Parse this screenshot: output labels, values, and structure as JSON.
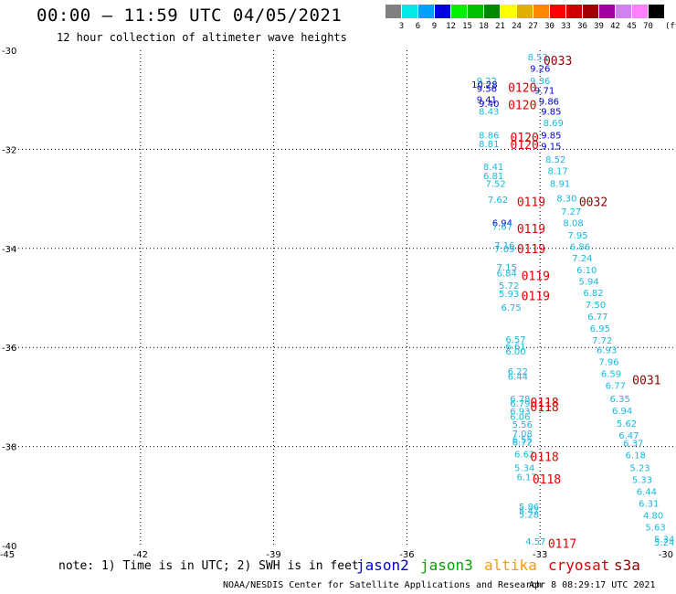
{
  "header": {
    "title": "00:00 – 11:59 UTC 04/05/2021",
    "subtitle": "12 hour collection of altimeter wave heights"
  },
  "color_scale": {
    "unit": "(ft)",
    "bins": [
      {
        "label": "3",
        "color": "#808080"
      },
      {
        "label": "6",
        "color": "#00e8e8"
      },
      {
        "label": "9",
        "color": "#00a0ff"
      },
      {
        "label": "12",
        "color": "#0000e0"
      },
      {
        "label": "15",
        "color": "#00f000"
      },
      {
        "label": "18",
        "color": "#00c000"
      },
      {
        "label": "21",
        "color": "#008800"
      },
      {
        "label": "24",
        "color": "#ffff00"
      },
      {
        "label": "27",
        "color": "#e0b000"
      },
      {
        "label": "30",
        "color": "#ff8800"
      },
      {
        "label": "33",
        "color": "#ff0000"
      },
      {
        "label": "36",
        "color": "#d00000"
      },
      {
        "label": "39",
        "color": "#a00000"
      },
      {
        "label": "42",
        "color": "#a000a0"
      },
      {
        "label": "45",
        "color": "#d080f0"
      },
      {
        "label": "70",
        "color": "#ff80ff"
      },
      {
        "label": "",
        "color": "#000000"
      }
    ]
  },
  "map": {
    "lon_range": [
      -45,
      -30
    ],
    "lat_range": [
      -40,
      -30
    ],
    "lon_ticks": [
      "-45",
      "-42",
      "-39",
      "-36",
      "-33",
      "-30"
    ],
    "lat_ticks": [
      "-30",
      "-32",
      "-34",
      "-36",
      "-38",
      "-40"
    ],
    "label_colors": {
      "cyan": "#18b8e0",
      "blue": "#0000d0",
      "red": "#e00000",
      "darkred": "#900000"
    },
    "time_labels": [
      {
        "text": "0033",
        "lon": -32.6,
        "lat": -30.2,
        "color": "darkred"
      },
      {
        "text": "0120",
        "lon": -33.4,
        "lat": -30.75,
        "color": "red"
      },
      {
        "text": "0120",
        "lon": -33.4,
        "lat": -31.1,
        "color": "red"
      },
      {
        "text": "0120",
        "lon": -33.35,
        "lat": -31.75,
        "color": "red"
      },
      {
        "text": "0120",
        "lon": -33.35,
        "lat": -31.9,
        "color": "red"
      },
      {
        "text": "0119",
        "lon": -33.2,
        "lat": -33.05,
        "color": "red"
      },
      {
        "text": "0032",
        "lon": -31.8,
        "lat": -33.05,
        "color": "darkred"
      },
      {
        "text": "0119",
        "lon": -33.2,
        "lat": -33.6,
        "color": "red"
      },
      {
        "text": "0119",
        "lon": -33.2,
        "lat": -34.0,
        "color": "red"
      },
      {
        "text": "0119",
        "lon": -33.1,
        "lat": -34.55,
        "color": "red"
      },
      {
        "text": "0119",
        "lon": -33.1,
        "lat": -34.95,
        "color": "red"
      },
      {
        "text": "0031",
        "lon": -30.6,
        "lat": -36.65,
        "color": "darkred"
      },
      {
        "text": "0118",
        "lon": -32.9,
        "lat": -37.1,
        "color": "red"
      },
      {
        "text": "0118",
        "lon": -32.9,
        "lat": -37.2,
        "color": "red"
      },
      {
        "text": "0118",
        "lon": -32.9,
        "lat": -38.2,
        "color": "red"
      },
      {
        "text": "0118",
        "lon": -32.85,
        "lat": -38.65,
        "color": "red"
      },
      {
        "text": "0117",
        "lon": -32.5,
        "lat": -39.95,
        "color": "red"
      }
    ],
    "wave_labels": [
      {
        "text": "8.53",
        "lon": -33.05,
        "lat": -30.2,
        "color": "cyan"
      },
      {
        "text": "9.26",
        "lon": -33.0,
        "lat": -30.43,
        "color": "blue"
      },
      {
        "text": "9.22",
        "lon": -34.2,
        "lat": -30.68,
        "color": "cyan"
      },
      {
        "text": "10.28",
        "lon": -34.25,
        "lat": -30.76,
        "color": "blue"
      },
      {
        "text": "9.56",
        "lon": -34.2,
        "lat": -30.84,
        "color": "blue"
      },
      {
        "text": "9.36",
        "lon": -33.0,
        "lat": -30.68,
        "color": "cyan"
      },
      {
        "text": "9.71",
        "lon": -32.9,
        "lat": -30.88,
        "color": "blue"
      },
      {
        "text": "9.41",
        "lon": -34.2,
        "lat": -31.06,
        "color": "blue"
      },
      {
        "text": "9.40",
        "lon": -34.15,
        "lat": -31.14,
        "color": "blue"
      },
      {
        "text": "8.43",
        "lon": -34.15,
        "lat": -31.3,
        "color": "cyan"
      },
      {
        "text": "9.86",
        "lon": -32.8,
        "lat": -31.1,
        "color": "blue"
      },
      {
        "text": "9.85",
        "lon": -32.75,
        "lat": -31.3,
        "color": "blue"
      },
      {
        "text": "8.69",
        "lon": -32.7,
        "lat": -31.53,
        "color": "cyan"
      },
      {
        "text": "8.86",
        "lon": -34.15,
        "lat": -31.78,
        "color": "cyan"
      },
      {
        "text": "9.85",
        "lon": -32.75,
        "lat": -31.78,
        "color": "blue"
      },
      {
        "text": "8.81",
        "lon": -34.15,
        "lat": -31.96,
        "color": "cyan"
      },
      {
        "text": "9.15",
        "lon": -32.75,
        "lat": -32.0,
        "color": "blue"
      },
      {
        "text": "8.52",
        "lon": -32.65,
        "lat": -32.27,
        "color": "cyan"
      },
      {
        "text": "8.41",
        "lon": -34.05,
        "lat": -32.42,
        "color": "cyan"
      },
      {
        "text": "8.17",
        "lon": -32.6,
        "lat": -32.5,
        "color": "cyan"
      },
      {
        "text": "6.81",
        "lon": -34.05,
        "lat": -32.6,
        "color": "cyan"
      },
      {
        "text": "7.52",
        "lon": -34.0,
        "lat": -32.76,
        "color": "cyan"
      },
      {
        "text": "8.91",
        "lon": -32.55,
        "lat": -32.76,
        "color": "cyan"
      },
      {
        "text": "7.62",
        "lon": -33.95,
        "lat": -33.08,
        "color": "cyan"
      },
      {
        "text": "8.30",
        "lon": -32.4,
        "lat": -33.05,
        "color": "cyan"
      },
      {
        "text": "7.27",
        "lon": -32.3,
        "lat": -33.32,
        "color": "cyan"
      },
      {
        "text": "8.08",
        "lon": -32.25,
        "lat": -33.55,
        "color": "cyan"
      },
      {
        "text": "6.94",
        "lon": -33.85,
        "lat": -33.55,
        "color": "blue"
      },
      {
        "text": "7.67",
        "lon": -33.85,
        "lat": -33.63,
        "color": "cyan"
      },
      {
        "text": "7.95",
        "lon": -32.15,
        "lat": -33.8,
        "color": "cyan"
      },
      {
        "text": "7.16",
        "lon": -33.8,
        "lat": -34.0,
        "color": "cyan"
      },
      {
        "text": "7.09",
        "lon": -33.8,
        "lat": -34.08,
        "color": "cyan"
      },
      {
        "text": "6.86",
        "lon": -32.1,
        "lat": -34.03,
        "color": "cyan"
      },
      {
        "text": "7.24",
        "lon": -32.05,
        "lat": -34.26,
        "color": "cyan"
      },
      {
        "text": "7.15",
        "lon": -33.75,
        "lat": -34.45,
        "color": "cyan"
      },
      {
        "text": "6.10",
        "lon": -31.95,
        "lat": -34.5,
        "color": "cyan"
      },
      {
        "text": "6.84",
        "lon": -33.75,
        "lat": -34.57,
        "color": "cyan"
      },
      {
        "text": "5.94",
        "lon": -31.9,
        "lat": -34.73,
        "color": "cyan"
      },
      {
        "text": "5.72",
        "lon": -33.7,
        "lat": -34.82,
        "color": "cyan"
      },
      {
        "text": "6.82",
        "lon": -31.8,
        "lat": -34.96,
        "color": "cyan"
      },
      {
        "text": "5.93",
        "lon": -33.7,
        "lat": -34.98,
        "color": "cyan"
      },
      {
        "text": "7.50",
        "lon": -31.75,
        "lat": -35.2,
        "color": "cyan"
      },
      {
        "text": "6.75",
        "lon": -33.65,
        "lat": -35.26,
        "color": "cyan"
      },
      {
        "text": "6.77",
        "lon": -31.7,
        "lat": -35.44,
        "color": "cyan"
      },
      {
        "text": "6.95",
        "lon": -31.65,
        "lat": -35.68,
        "color": "cyan"
      },
      {
        "text": "6.57",
        "lon": -33.55,
        "lat": -35.9,
        "color": "cyan"
      },
      {
        "text": "7.72",
        "lon": -31.6,
        "lat": -35.92,
        "color": "cyan"
      },
      {
        "text": "6.61",
        "lon": -33.55,
        "lat": -36.04,
        "color": "cyan"
      },
      {
        "text": "6.00",
        "lon": -33.55,
        "lat": -36.14,
        "color": "cyan"
      },
      {
        "text": "6.93",
        "lon": -31.5,
        "lat": -36.12,
        "color": "cyan"
      },
      {
        "text": "7.96",
        "lon": -31.45,
        "lat": -36.36,
        "color": "cyan"
      },
      {
        "text": "6.22",
        "lon": -33.5,
        "lat": -36.55,
        "color": "cyan"
      },
      {
        "text": "6.59",
        "lon": -31.4,
        "lat": -36.6,
        "color": "cyan"
      },
      {
        "text": "6.44",
        "lon": -33.5,
        "lat": -36.65,
        "color": "cyan"
      },
      {
        "text": "6.77",
        "lon": -31.3,
        "lat": -36.84,
        "color": "cyan"
      },
      {
        "text": "6.78",
        "lon": -33.45,
        "lat": -37.1,
        "color": "cyan"
      },
      {
        "text": "6.35",
        "lon": -31.2,
        "lat": -37.1,
        "color": "cyan"
      },
      {
        "text": "6.79",
        "lon": -33.45,
        "lat": -37.2,
        "color": "cyan"
      },
      {
        "text": "6.93",
        "lon": -33.45,
        "lat": -37.35,
        "color": "cyan"
      },
      {
        "text": "6.94",
        "lon": -31.15,
        "lat": -37.34,
        "color": "cyan"
      },
      {
        "text": "6.06",
        "lon": -33.45,
        "lat": -37.46,
        "color": "cyan"
      },
      {
        "text": "5.56",
        "lon": -33.4,
        "lat": -37.62,
        "color": "cyan"
      },
      {
        "text": "5.62",
        "lon": -31.05,
        "lat": -37.6,
        "color": "cyan"
      },
      {
        "text": "7.08",
        "lon": -33.4,
        "lat": -37.8,
        "color": "cyan"
      },
      {
        "text": "6.47",
        "lon": -31.0,
        "lat": -37.84,
        "color": "cyan"
      },
      {
        "text": "6.55",
        "lon": -33.4,
        "lat": -37.92,
        "color": "cyan"
      },
      {
        "text": "6.72",
        "lon": -33.4,
        "lat": -37.98,
        "color": "cyan"
      },
      {
        "text": "6.37",
        "lon": -30.9,
        "lat": -38.0,
        "color": "cyan"
      },
      {
        "text": "6.62",
        "lon": -33.35,
        "lat": -38.22,
        "color": "cyan"
      },
      {
        "text": "6.18",
        "lon": -30.85,
        "lat": -38.24,
        "color": "cyan"
      },
      {
        "text": "5.34",
        "lon": -33.35,
        "lat": -38.5,
        "color": "cyan"
      },
      {
        "text": "5.23",
        "lon": -30.75,
        "lat": -38.5,
        "color": "cyan"
      },
      {
        "text": "6.17",
        "lon": -33.3,
        "lat": -38.68,
        "color": "cyan"
      },
      {
        "text": "5.33",
        "lon": -30.7,
        "lat": -38.74,
        "color": "cyan"
      },
      {
        "text": "6.44",
        "lon": -30.6,
        "lat": -38.98,
        "color": "cyan"
      },
      {
        "text": "6.31",
        "lon": -30.55,
        "lat": -39.22,
        "color": "cyan"
      },
      {
        "text": "5.86",
        "lon": -33.25,
        "lat": -39.28,
        "color": "cyan"
      },
      {
        "text": "5.47",
        "lon": -33.25,
        "lat": -39.36,
        "color": "cyan"
      },
      {
        "text": "5.28",
        "lon": -33.25,
        "lat": -39.44,
        "color": "cyan"
      },
      {
        "text": "4.80",
        "lon": -30.45,
        "lat": -39.46,
        "color": "cyan"
      },
      {
        "text": "5.63",
        "lon": -30.4,
        "lat": -39.7,
        "color": "cyan"
      },
      {
        "text": "4.57",
        "lon": -33.1,
        "lat": -39.98,
        "color": "cyan"
      },
      {
        "text": "5.34",
        "lon": -30.2,
        "lat": -39.94,
        "color": "cyan"
      },
      {
        "text": "5.24",
        "lon": -30.2,
        "lat": -40.0,
        "color": "cyan"
      }
    ]
  },
  "footer": {
    "note": "note: 1) Time is in UTC; 2) SWH is in feet",
    "satellites": [
      {
        "name": "jason2",
        "color": "#0000d0"
      },
      {
        "name": "jason3",
        "color": "#00a000"
      },
      {
        "name": "altika",
        "color": "#ff9900"
      },
      {
        "name": "cryosat",
        "color": "#e00000"
      },
      {
        "name": "s3a",
        "color": "#900000"
      }
    ],
    "credit": "NOAA/NESDIS Center for Satellite Applications and Research",
    "generated": "Apr  8 08:29:17 UTC 2021"
  }
}
